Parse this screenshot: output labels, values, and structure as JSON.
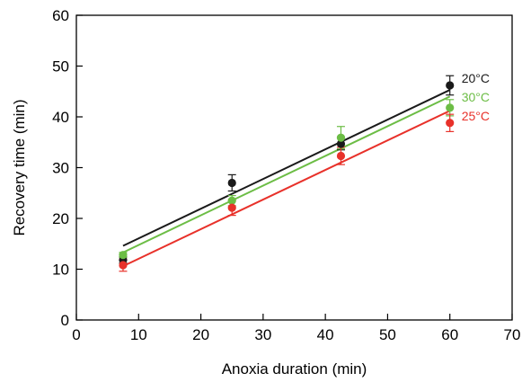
{
  "chart_data": {
    "type": "scatter",
    "title": "",
    "xlabel": "Anoxia duration (min)",
    "ylabel": "Recovery time (min)",
    "xlim": [
      0,
      70
    ],
    "ylim": [
      0,
      60
    ],
    "xticks": [
      0,
      10,
      20,
      30,
      40,
      50,
      60,
      70
    ],
    "yticks": [
      0,
      10,
      20,
      30,
      40,
      50,
      60
    ],
    "grid": false,
    "legend": "right, next to series ends",
    "series": [
      {
        "name": "20°C",
        "color": "#1a1a1a",
        "points": [
          {
            "x": 7.5,
            "y": 11.8,
            "err": 0.6
          },
          {
            "x": 25,
            "y": 27.0,
            "err": 1.6
          },
          {
            "x": 42.5,
            "y": 34.7,
            "err": 1.2
          },
          {
            "x": 60,
            "y": 46.2,
            "err": 1.9
          }
        ],
        "fit": {
          "x": [
            7.5,
            60
          ],
          "y": [
            14.6,
            45.3
          ]
        }
      },
      {
        "name": "30°C",
        "color": "#6cbd45",
        "points": [
          {
            "x": 7.5,
            "y": 12.8,
            "err": 0.5
          },
          {
            "x": 25,
            "y": 23.5,
            "err": 1.0
          },
          {
            "x": 42.5,
            "y": 35.9,
            "err": 2.2
          },
          {
            "x": 60,
            "y": 41.8,
            "err": 1.6
          }
        ],
        "fit": {
          "x": [
            7.5,
            60
          ],
          "y": [
            13.3,
            44.0
          ]
        }
      },
      {
        "name": "25°C",
        "color": "#e8312a",
        "points": [
          {
            "x": 7.5,
            "y": 10.8,
            "err": 1.2
          },
          {
            "x": 25,
            "y": 22.1,
            "err": 1.5
          },
          {
            "x": 42.5,
            "y": 32.3,
            "err": 1.7
          },
          {
            "x": 60,
            "y": 38.8,
            "err": 1.7
          }
        ],
        "fit": {
          "x": [
            7.5,
            60
          ],
          "y": [
            10.6,
            41.2
          ]
        }
      }
    ]
  }
}
